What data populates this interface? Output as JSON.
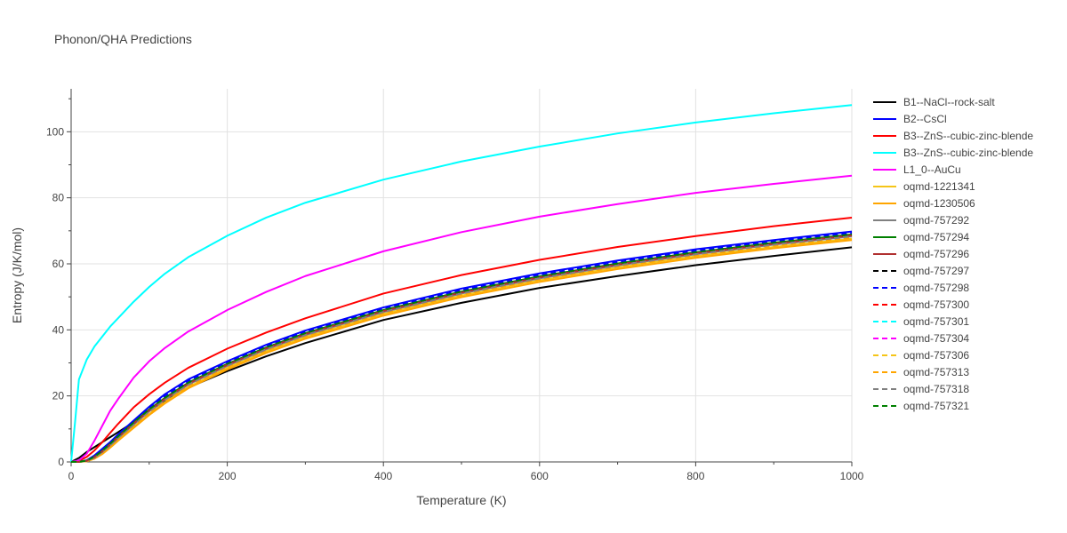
{
  "chart_data": {
    "type": "line",
    "title": "Phonon/QHA Predictions",
    "xlabel": "Temperature (K)",
    "ylabel": "Entropy (J/K/mol)",
    "xlim": [
      0,
      1000
    ],
    "ylim": [
      0,
      113
    ],
    "xticks": [
      0,
      200,
      400,
      600,
      800,
      1000
    ],
    "yticks": [
      0,
      20,
      40,
      60,
      80,
      100
    ],
    "grid": true,
    "legend_position": "right",
    "series": [
      {
        "name": "B1--NaCl--rock-salt",
        "color": "#000000",
        "dash": "solid",
        "x": [
          0,
          10,
          20,
          30,
          40,
          50,
          60,
          80,
          100,
          120,
          150,
          200,
          250,
          300,
          400,
          500,
          600,
          700,
          800,
          900,
          1000
        ],
        "y": [
          0,
          1.2,
          3,
          4.5,
          6,
          7.5,
          9,
          12,
          15.5,
          18.5,
          22.5,
          27.5,
          32,
          36,
          43,
          48.2,
          52.7,
          56.3,
          59.6,
          62.4,
          65
        ]
      },
      {
        "name": "B2--CsCl",
        "color": "#0000ff",
        "dash": "solid",
        "x": [
          0,
          10,
          20,
          30,
          40,
          50,
          60,
          80,
          100,
          120,
          150,
          200,
          250,
          300,
          400,
          500,
          600,
          700,
          800,
          900,
          1000
        ],
        "y": [
          0,
          0.05,
          0.5,
          2,
          4,
          6,
          8.3,
          12.5,
          16.7,
          20.5,
          25,
          30.5,
          35.5,
          39.8,
          46.8,
          52.5,
          57.1,
          61,
          64.4,
          67.2,
          69.8
        ]
      },
      {
        "name": "B3--ZnS--cubic-zinc-blende",
        "color": "#ff0000",
        "dash": "solid",
        "x": [
          0,
          10,
          20,
          30,
          40,
          50,
          60,
          80,
          100,
          120,
          150,
          200,
          250,
          300,
          400,
          500,
          600,
          700,
          800,
          900,
          1000
        ],
        "y": [
          0,
          0.3,
          1.5,
          3.5,
          6,
          8.8,
          11.5,
          16.5,
          20.5,
          24,
          28.5,
          34.3,
          39.2,
          43.5,
          51,
          56.6,
          61.2,
          65.1,
          68.4,
          71.4,
          74
        ]
      },
      {
        "name": "B3--ZnS--cubic-zinc-blende",
        "color": "#00ffff",
        "dash": "solid",
        "x": [
          0,
          5,
          10,
          15,
          20,
          30,
          40,
          50,
          60,
          80,
          100,
          120,
          150,
          200,
          250,
          300,
          400,
          500,
          600,
          700,
          800,
          900,
          1000
        ],
        "y": [
          0,
          12,
          25,
          28,
          31,
          35,
          38,
          41,
          43.5,
          48.5,
          53,
          57,
          62,
          68.5,
          74,
          78.5,
          85.5,
          91,
          95.5,
          99.5,
          102.8,
          105.6,
          108.1
        ]
      },
      {
        "name": "L1_0--AuCu",
        "color": "#ff00ff",
        "dash": "solid",
        "x": [
          0,
          10,
          20,
          30,
          40,
          50,
          60,
          80,
          100,
          120,
          150,
          200,
          250,
          300,
          400,
          500,
          600,
          700,
          800,
          900,
          1000
        ],
        "y": [
          0,
          0.5,
          2.5,
          6.5,
          11,
          15.5,
          19,
          25.5,
          30.5,
          34.5,
          39.5,
          46,
          51.5,
          56.3,
          63.8,
          69.6,
          74.3,
          78.1,
          81.5,
          84.2,
          86.7
        ]
      },
      {
        "name": "oqmd-1221341",
        "color": "#f5c518",
        "dash": "solid",
        "x": [
          0,
          10,
          20,
          30,
          40,
          50,
          60,
          80,
          100,
          120,
          150,
          200,
          250,
          300,
          400,
          500,
          600,
          700,
          800,
          900,
          1000
        ],
        "y": [
          0,
          0.02,
          0.2,
          1,
          2.5,
          4.5,
          6.6,
          10.6,
          14.5,
          18,
          22.7,
          28.5,
          33.5,
          37.8,
          44.8,
          50.4,
          55,
          58.9,
          62.3,
          65.1,
          67.6
        ]
      },
      {
        "name": "oqmd-1230506",
        "color": "#ffa500",
        "dash": "solid",
        "x": [
          0,
          10,
          20,
          30,
          40,
          50,
          60,
          80,
          100,
          120,
          150,
          200,
          250,
          300,
          400,
          500,
          600,
          700,
          800,
          900,
          1000
        ],
        "y": [
          0,
          0.02,
          0.2,
          1,
          2.4,
          4.3,
          6.4,
          10.3,
          14.2,
          17.7,
          22.3,
          28,
          33,
          37.3,
          44.3,
          49.9,
          54.5,
          58.4,
          61.8,
          64.7,
          67.2
        ]
      },
      {
        "name": "oqmd-757292",
        "color": "#808080",
        "dash": "solid",
        "x": [
          0,
          10,
          20,
          30,
          40,
          50,
          60,
          80,
          100,
          120,
          150,
          200,
          250,
          300,
          400,
          500,
          600,
          700,
          800,
          900,
          1000
        ],
        "y": [
          0,
          0.03,
          0.3,
          1.3,
          3,
          5,
          7.2,
          11.3,
          15.3,
          18.8,
          23.4,
          29.1,
          34.1,
          38.4,
          45.4,
          51,
          55.6,
          59.5,
          62.9,
          65.8,
          68.3
        ]
      },
      {
        "name": "oqmd-757294",
        "color": "#008000",
        "dash": "solid",
        "x": [
          0,
          10,
          20,
          30,
          40,
          50,
          60,
          80,
          100,
          120,
          150,
          200,
          250,
          300,
          400,
          500,
          600,
          700,
          800,
          900,
          1000
        ],
        "y": [
          0,
          0.03,
          0.4,
          1.6,
          3.4,
          5.5,
          7.7,
          11.9,
          15.9,
          19.4,
          24,
          29.7,
          34.7,
          39,
          46,
          51.6,
          56.2,
          60.1,
          63.5,
          66.4,
          68.9
        ]
      },
      {
        "name": "oqmd-757296",
        "color": "#b03030",
        "dash": "solid",
        "x": [
          0,
          10,
          20,
          30,
          40,
          50,
          60,
          80,
          100,
          120,
          150,
          200,
          250,
          300,
          400,
          500,
          600,
          700,
          800,
          900,
          1000
        ],
        "y": [
          0,
          0.03,
          0.35,
          1.5,
          3.2,
          5.3,
          7.5,
          11.6,
          15.6,
          19.1,
          23.7,
          29.4,
          34.4,
          38.7,
          45.7,
          51.3,
          55.9,
          59.8,
          63.2,
          66.1,
          68.6
        ]
      },
      {
        "name": "oqmd-757297",
        "color": "#000000",
        "dash": "dashed",
        "x": [
          0,
          10,
          20,
          30,
          40,
          50,
          60,
          80,
          100,
          120,
          150,
          200,
          250,
          300,
          400,
          500,
          600,
          700,
          800,
          900,
          1000
        ],
        "y": [
          0,
          0.03,
          0.3,
          1.3,
          3,
          5,
          7.2,
          11.3,
          15.3,
          18.8,
          23.4,
          29.1,
          34.1,
          38.4,
          45.4,
          51,
          55.6,
          59.5,
          62.9,
          65.8,
          68.3
        ]
      },
      {
        "name": "oqmd-757298",
        "color": "#0000ff",
        "dash": "dashed",
        "x": [
          0,
          10,
          20,
          30,
          40,
          50,
          60,
          80,
          100,
          120,
          150,
          200,
          250,
          300,
          400,
          500,
          600,
          700,
          800,
          900,
          1000
        ],
        "y": [
          0,
          0.04,
          0.45,
          1.8,
          3.7,
          5.8,
          8,
          12.2,
          16.3,
          19.9,
          24.5,
          30.1,
          35.1,
          39.4,
          46.4,
          52,
          56.6,
          60.5,
          63.9,
          66.8,
          69.3
        ]
      },
      {
        "name": "oqmd-757300",
        "color": "#ff0000",
        "dash": "dashed",
        "x": [
          0,
          10,
          20,
          30,
          40,
          50,
          60,
          80,
          100,
          120,
          150,
          200,
          250,
          300,
          400,
          500,
          600,
          700,
          800,
          900,
          1000
        ],
        "y": [
          0,
          0.03,
          0.35,
          1.5,
          3.2,
          5.3,
          7.5,
          11.6,
          15.6,
          19.1,
          23.7,
          29.4,
          34.4,
          38.7,
          45.7,
          51.3,
          55.9,
          59.8,
          63.2,
          66.1,
          68.6
        ]
      },
      {
        "name": "oqmd-757301",
        "color": "#00ffff",
        "dash": "dashed",
        "x": [
          0,
          10,
          20,
          30,
          40,
          50,
          60,
          80,
          100,
          120,
          150,
          200,
          250,
          300,
          400,
          500,
          600,
          700,
          800,
          900,
          1000
        ],
        "y": [
          0,
          0.03,
          0.3,
          1.3,
          3,
          5,
          7.2,
          11.3,
          15.3,
          18.8,
          23.4,
          29.1,
          34.1,
          38.4,
          45.4,
          51,
          55.6,
          59.5,
          62.9,
          65.8,
          68.3
        ]
      },
      {
        "name": "oqmd-757304",
        "color": "#ff00ff",
        "dash": "dashed",
        "x": [
          0,
          10,
          20,
          30,
          40,
          50,
          60,
          80,
          100,
          120,
          150,
          200,
          250,
          300,
          400,
          500,
          600,
          700,
          800,
          900,
          1000
        ],
        "y": [
          0,
          0.03,
          0.3,
          1.3,
          3,
          5,
          7.2,
          11.3,
          15.3,
          18.8,
          23.4,
          29.1,
          34.1,
          38.4,
          45.4,
          51,
          55.6,
          59.5,
          62.9,
          65.8,
          68.3
        ]
      },
      {
        "name": "oqmd-757306",
        "color": "#f5c518",
        "dash": "dashed",
        "x": [
          0,
          10,
          20,
          30,
          40,
          50,
          60,
          80,
          100,
          120,
          150,
          200,
          250,
          300,
          400,
          500,
          600,
          700,
          800,
          900,
          1000
        ],
        "y": [
          0,
          0.02,
          0.25,
          1.1,
          2.7,
          4.7,
          6.8,
          10.8,
          14.7,
          18.2,
          22.9,
          28.7,
          33.7,
          38,
          45,
          50.6,
          55.2,
          59.1,
          62.5,
          65.4,
          67.9
        ]
      },
      {
        "name": "oqmd-757313",
        "color": "#ffa500",
        "dash": "dashed",
        "x": [
          0,
          10,
          20,
          30,
          40,
          50,
          60,
          80,
          100,
          120,
          150,
          200,
          250,
          300,
          400,
          500,
          600,
          700,
          800,
          900,
          1000
        ],
        "y": [
          0,
          0.02,
          0.25,
          1.1,
          2.7,
          4.7,
          6.8,
          10.8,
          14.7,
          18.2,
          22.9,
          28.7,
          33.7,
          38,
          45,
          50.6,
          55.2,
          59.1,
          62.5,
          65.4,
          67.9
        ]
      },
      {
        "name": "oqmd-757318",
        "color": "#808080",
        "dash": "dashed",
        "x": [
          0,
          10,
          20,
          30,
          40,
          50,
          60,
          80,
          100,
          120,
          150,
          200,
          250,
          300,
          400,
          500,
          600,
          700,
          800,
          900,
          1000
        ],
        "y": [
          0,
          0.03,
          0.3,
          1.3,
          3,
          5,
          7.2,
          11.3,
          15.3,
          18.8,
          23.4,
          29.1,
          34.1,
          38.4,
          45.4,
          51,
          55.6,
          59.5,
          62.9,
          65.8,
          68.3
        ]
      },
      {
        "name": "oqmd-757321",
        "color": "#008000",
        "dash": "dashed",
        "x": [
          0,
          10,
          20,
          30,
          40,
          50,
          60,
          80,
          100,
          120,
          150,
          200,
          250,
          300,
          400,
          500,
          600,
          700,
          800,
          900,
          1000
        ],
        "y": [
          0,
          0.03,
          0.4,
          1.6,
          3.4,
          5.5,
          7.7,
          11.9,
          15.9,
          19.4,
          24,
          29.7,
          34.7,
          39,
          46,
          51.6,
          56.2,
          60.1,
          63.5,
          66.4,
          68.9
        ]
      }
    ]
  }
}
